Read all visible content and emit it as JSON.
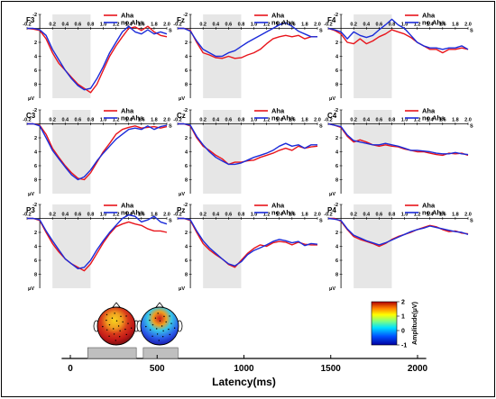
{
  "chart_data": [
    {
      "type": "line",
      "panel_grid": {
        "rows": 3,
        "cols": 3
      },
      "electrodes": [
        "F3",
        "Fz",
        "F4",
        "C3",
        "Cz",
        "C4",
        "P3",
        "Pz",
        "P4"
      ],
      "legend": [
        "Aha",
        "no Aha"
      ],
      "series_colors": {
        "Aha": "#e8141b",
        "no Aha": "#1b2bd9"
      },
      "x_ticks": [
        "-0.2",
        "0.2",
        "0.4",
        "0.6",
        "0.8",
        "1.0",
        "1.2",
        "1.4",
        "1.6",
        "1.8",
        "2.0"
      ],
      "x_unit": "S",
      "y_unit": "μV",
      "y_ticks": [
        "-2",
        "2",
        "4",
        "6",
        "8"
      ],
      "xlim": [
        -0.2,
        2.0
      ],
      "ylim": [
        -2,
        10
      ],
      "y_inverted": true,
      "highlight_window": [
        0.2,
        0.8
      ],
      "highlight_color": "#e6e6e6",
      "x": [
        -0.2,
        -0.1,
        0.0,
        0.1,
        0.2,
        0.3,
        0.4,
        0.5,
        0.6,
        0.7,
        0.8,
        0.9,
        1.0,
        1.1,
        1.2,
        1.3,
        1.4,
        1.5,
        1.6,
        1.7,
        1.8,
        1.9,
        2.0
      ],
      "panels": [
        {
          "name": "F3",
          "aha": [
            0,
            0.1,
            0.3,
            1.5,
            3.5,
            5.0,
            6.0,
            7.0,
            8.0,
            8.6,
            9.2,
            8.0,
            6.0,
            4.0,
            2.5,
            1.2,
            0.0,
            -0.2,
            0.3,
            -0.3,
            0.5,
            1.0,
            1.2
          ],
          "noaha": [
            0,
            0,
            0.2,
            1.0,
            3.0,
            4.5,
            6.0,
            7.2,
            8.2,
            8.8,
            8.6,
            7.2,
            5.5,
            3.5,
            2.0,
            0.5,
            -0.3,
            0.5,
            0.8,
            0.2,
            0.8,
            0.5,
            0.8
          ]
        },
        {
          "name": "Fz",
          "aha": [
            0,
            0,
            0.3,
            2.0,
            3.5,
            3.8,
            4.2,
            4.3,
            4.0,
            4.3,
            4.2,
            3.8,
            3.5,
            3.0,
            2.2,
            1.5,
            1.2,
            1.0,
            1.2,
            1.0,
            1.5,
            1.2,
            1.2
          ],
          "noaha": [
            0,
            0,
            0.4,
            1.8,
            3.0,
            3.5,
            4.0,
            4.0,
            3.5,
            3.2,
            2.6,
            2.0,
            1.5,
            1.0,
            0.5,
            0.0,
            -0.5,
            -0.8,
            -0.3,
            0.4,
            0.8,
            1.2,
            1.2
          ]
        },
        {
          "name": "F4",
          "aha": [
            0,
            0.3,
            0.8,
            2.0,
            2.2,
            1.5,
            2.2,
            1.8,
            1.2,
            0.8,
            0.2,
            0.5,
            0.8,
            1.3,
            2.0,
            2.5,
            3.0,
            3.0,
            3.5,
            3.0,
            3.0,
            2.8,
            3.0
          ],
          "noaha": [
            0,
            0.2,
            0.5,
            1.5,
            0.5,
            1.0,
            1.3,
            1.0,
            0.2,
            -0.5,
            -1.3,
            -0.5,
            0.0,
            1.0,
            2.0,
            2.5,
            2.8,
            2.8,
            3.0,
            2.8,
            2.8,
            2.5,
            3.0
          ]
        },
        {
          "name": "C3",
          "aha": [
            0,
            0,
            0.2,
            1.5,
            3.5,
            4.8,
            6.0,
            7.0,
            7.8,
            8.0,
            7.0,
            5.5,
            4.0,
            2.8,
            1.5,
            0.8,
            0.5,
            0.3,
            0.6,
            0.5,
            0.4,
            0.6,
            0.4
          ],
          "noaha": [
            0,
            0,
            0.3,
            2.0,
            3.8,
            5.0,
            6.2,
            7.3,
            8.0,
            7.6,
            6.6,
            5.3,
            4.2,
            3.2,
            2.2,
            1.5,
            0.8,
            0.6,
            0.8,
            0.3,
            0.8,
            0.4,
            0.2
          ]
        },
        {
          "name": "Cz",
          "aha": [
            0,
            0,
            0.3,
            2.0,
            3.2,
            3.8,
            4.5,
            5.0,
            5.8,
            5.5,
            5.5,
            5.3,
            5.2,
            4.8,
            4.5,
            4.2,
            3.8,
            3.5,
            3.8,
            3.2,
            3.5,
            3.3,
            3.2
          ],
          "noaha": [
            0,
            0,
            0.2,
            1.8,
            3.0,
            4.0,
            4.8,
            5.3,
            5.8,
            5.8,
            5.6,
            5.2,
            4.8,
            4.5,
            4.2,
            3.8,
            3.2,
            2.8,
            3.2,
            3.0,
            3.5,
            3.0,
            3.0
          ]
        },
        {
          "name": "C4",
          "aha": [
            0,
            0.2,
            0.5,
            1.8,
            2.6,
            2.3,
            2.6,
            3.0,
            3.2,
            3.0,
            3.2,
            3.3,
            3.6,
            3.8,
            4.0,
            4.0,
            4.2,
            4.4,
            4.5,
            4.2,
            4.3,
            4.2,
            4.5
          ],
          "noaha": [
            0,
            0.2,
            0.4,
            1.6,
            2.4,
            2.6,
            2.8,
            3.0,
            3.0,
            2.8,
            3.0,
            3.2,
            3.5,
            3.8,
            3.8,
            3.9,
            4.0,
            4.2,
            4.3,
            4.3,
            4.1,
            4.3,
            4.4
          ]
        },
        {
          "name": "P3",
          "aha": [
            0,
            0,
            0.3,
            2.0,
            3.6,
            4.8,
            5.8,
            6.5,
            7.0,
            7.5,
            6.5,
            5.0,
            3.5,
            2.2,
            1.2,
            0.8,
            0.5,
            0.8,
            1.0,
            1.5,
            1.8,
            1.8,
            2.0
          ],
          "noaha": [
            0,
            0,
            0.2,
            1.8,
            3.2,
            4.5,
            5.8,
            6.5,
            7.2,
            7.0,
            6.0,
            4.5,
            3.2,
            2.0,
            1.0,
            0.0,
            -0.5,
            -0.3,
            0.5,
            0.2,
            -0.3,
            0.5,
            0.8
          ]
        },
        {
          "name": "Pz",
          "aha": [
            0,
            0,
            0.3,
            2.0,
            3.6,
            4.5,
            5.2,
            5.8,
            6.6,
            7.0,
            6.0,
            5.0,
            4.3,
            3.8,
            4.0,
            3.5,
            3.3,
            3.4,
            3.8,
            3.4,
            3.7,
            3.8,
            3.8
          ],
          "noaha": [
            0,
            0,
            0.2,
            1.8,
            3.2,
            4.2,
            5.0,
            5.8,
            6.5,
            6.8,
            6.2,
            5.2,
            4.6,
            4.2,
            3.8,
            3.3,
            3.0,
            3.2,
            3.5,
            3.3,
            3.9,
            3.6,
            3.7
          ]
        },
        {
          "name": "P4",
          "aha": [
            0,
            0,
            0.4,
            1.6,
            2.6,
            3.0,
            3.3,
            3.6,
            4.0,
            3.6,
            3.0,
            2.6,
            2.3,
            2.0,
            1.6,
            1.3,
            1.0,
            1.2,
            1.6,
            1.9,
            1.8,
            2.1,
            2.2
          ],
          "noaha": [
            0,
            0.1,
            0.3,
            1.5,
            2.4,
            2.8,
            3.2,
            3.5,
            3.8,
            3.5,
            3.1,
            2.7,
            2.3,
            1.9,
            1.6,
            1.4,
            1.1,
            1.3,
            1.5,
            1.7,
            1.9,
            2.0,
            2.3
          ]
        }
      ]
    },
    {
      "type": "bar",
      "orientation": "horizontal-timeline",
      "xlabel": "Latency(ms)",
      "x_ticks": [
        "0",
        "500",
        "1000",
        "1500",
        "2000"
      ],
      "xlim": [
        -50,
        2050
      ],
      "intervals": [
        {
          "start": 100,
          "end": 380
        },
        {
          "start": 420,
          "end": 620
        }
      ],
      "bar_color": "#bfbfbf"
    },
    {
      "type": "heatmap",
      "kind": "topographic-colorbar",
      "colorbar_label": "Amplitude(μV)",
      "colorbar_ticks": [
        "2",
        "1",
        "0",
        "-1"
      ],
      "colorbar_range": [
        -1,
        2
      ]
    }
  ]
}
